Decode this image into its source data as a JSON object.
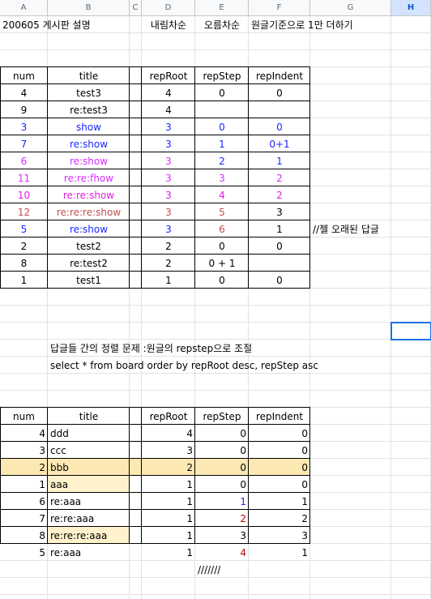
{
  "columns": [
    "A",
    "B",
    "C",
    "D",
    "E",
    "F",
    "G",
    "H"
  ],
  "header_row": {
    "A": "200605 게시판 설명",
    "D": "내림차순",
    "E": "오름차순",
    "F": "원글기준으로 1만 더하기"
  },
  "table1": {
    "headers": [
      "num",
      "title",
      "repRoot",
      "repStep",
      "repIndent"
    ],
    "rows": [
      {
        "num": "4",
        "title": "test3",
        "root": "4",
        "step": "0",
        "indent": "0",
        "color": "#000000",
        "step_color": "#000000"
      },
      {
        "num": "9",
        "title": "re:test3",
        "root": "4",
        "step": "",
        "indent": "",
        "color": "#000000",
        "step_color": "#000000"
      },
      {
        "num": "3",
        "title": "show",
        "root": "3",
        "step": "0",
        "indent": "0",
        "color": "#1a28ff",
        "step_color": "#1a28ff"
      },
      {
        "num": "7",
        "title": "re:show",
        "root": "3",
        "step": "1",
        "indent": "0+1",
        "color": "#1a28ff",
        "step_color": "#1a28ff"
      },
      {
        "num": "6",
        "title": "re:show",
        "root": "3",
        "step": "2",
        "indent": "1",
        "color": "#d62cff",
        "step_color": "#1a28ff",
        "indent_color": "#1a28ff"
      },
      {
        "num": "11",
        "title": "re:re:fhow",
        "root": "3",
        "step": "3",
        "indent": "2",
        "color": "#d62cff",
        "step_color": "#d62cff"
      },
      {
        "num": "10",
        "title": "re:re:show",
        "root": "3",
        "step": "4",
        "indent": "2",
        "color": "#e020e0",
        "step_color": "#e020e0"
      },
      {
        "num": "12",
        "title": "re:re:re:show",
        "root": "3",
        "step": "5",
        "indent": "3",
        "color": "#c0504d",
        "step_color": "#c0504d",
        "indent_color": "#000000"
      },
      {
        "num": "5",
        "title": "re:show",
        "root": "3",
        "step": "6",
        "indent": "1",
        "color": "#1a28ff",
        "step_color": "#c0504d",
        "indent_color": "#000000"
      },
      {
        "num": "2",
        "title": "test2",
        "root": "2",
        "step": "0",
        "indent": "0",
        "color": "#000000",
        "step_color": "#000000"
      },
      {
        "num": "8",
        "title": "re:test2",
        "root": "2",
        "step": "0 + 1",
        "indent": "",
        "color": "#000000",
        "step_color": "#000000"
      },
      {
        "num": "1",
        "title": "test1",
        "root": "1",
        "step": "0",
        "indent": "0",
        "color": "#000000",
        "step_color": "#000000"
      }
    ],
    "note": "//젤 오래된 답글"
  },
  "notes": {
    "line1": "답글들 간의 정렬 문제 :원글의  repstep으로 조절",
    "line2": "select * from board order by repRoot desc, repStep  asc"
  },
  "table2": {
    "headers": [
      "num",
      "title",
      "repRoot",
      "repStep",
      "repIndent"
    ],
    "rows": [
      {
        "num": "4",
        "title": "ddd",
        "root": "4",
        "step": "0",
        "indent": "0",
        "hl": "",
        "step_color": "#000000"
      },
      {
        "num": "3",
        "title": "ccc",
        "root": "3",
        "step": "0",
        "indent": "0",
        "hl": "",
        "step_color": "#000000"
      },
      {
        "num": "2",
        "title": "bbb",
        "root": "2",
        "step": "0",
        "indent": "0",
        "hl": "",
        "step_color": "#000000"
      },
      {
        "num": "1",
        "title": "aaa",
        "root": "1",
        "step": "0",
        "indent": "0",
        "hl": "row",
        "step_color": "#000000"
      },
      {
        "num": "6",
        "title": "re:aaa",
        "root": "1",
        "step": "1",
        "indent": "1",
        "hl": "title",
        "step_color": "#1a28ff"
      },
      {
        "num": "7",
        "title": "re:re:aaa",
        "root": "1",
        "step": "2",
        "indent": "2",
        "hl": "",
        "step_color": "#c00000"
      },
      {
        "num": "8",
        "title": "re:re:re:aaa",
        "root": "1",
        "step": "3",
        "indent": "3",
        "hl": "",
        "step_color": "#000000"
      },
      {
        "num": "5",
        "title": "re:aaa",
        "root": "1",
        "step": "4",
        "indent": "1",
        "hl": "title",
        "step_color": "#c00000"
      }
    ],
    "footer": "///////"
  },
  "colors": {
    "highlight_row": "#fce8b2",
    "highlight_title": "#fff2cc",
    "selection": "#1a73e8"
  }
}
